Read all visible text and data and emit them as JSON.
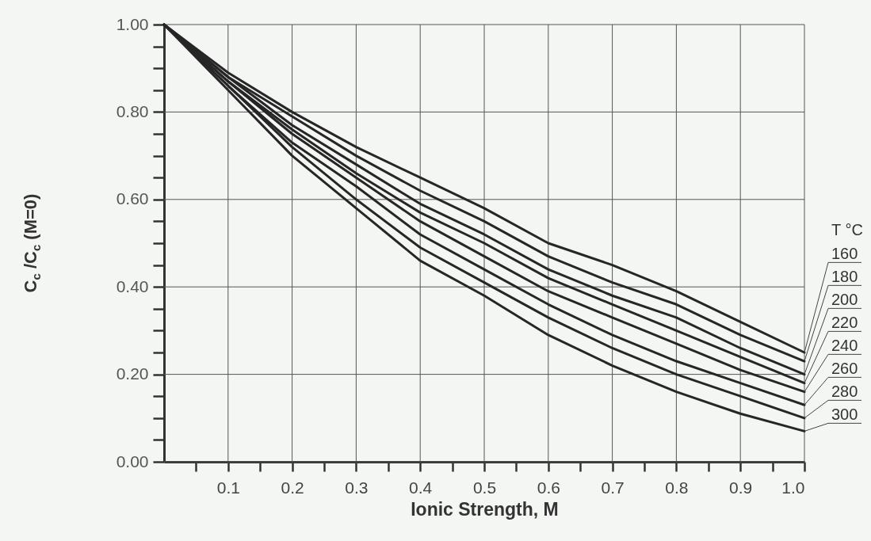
{
  "chart_data": {
    "type": "line",
    "xlabel": "Ionic Strength, M",
    "ylabel": "C$_{c}$ /C$_{c}$  (M=0)",
    "legend_title": "T °C",
    "grid": true,
    "x": [
      0,
      0.1,
      0.2,
      0.3,
      0.4,
      0.5,
      0.6,
      0.7,
      0.8,
      0.9,
      1.0
    ],
    "xlim": [
      0,
      1.0
    ],
    "ylim": [
      0,
      1.0
    ],
    "xticks": [
      {
        "value": 0.05,
        "label": null
      },
      0.1,
      {
        "value": 0.15,
        "label": null
      },
      0.2,
      {
        "value": 0.25,
        "label": null
      },
      0.3,
      {
        "value": 0.35,
        "label": null
      },
      0.4,
      {
        "value": 0.45,
        "label": null
      },
      0.5,
      {
        "value": 0.55,
        "label": null
      },
      0.6,
      {
        "value": 0.65,
        "label": null
      },
      0.7,
      {
        "value": 0.75,
        "label": null
      },
      0.8,
      {
        "value": 0.85,
        "label": null
      },
      0.9,
      {
        "value": 0.95,
        "label": null
      },
      {
        "value": 1.0,
        "label": "1.0"
      }
    ],
    "yticks": [
      {
        "value": 0,
        "label": "0.00"
      },
      {
        "value": 0.05,
        "label": null
      },
      {
        "value": 0.1,
        "label": null
      },
      {
        "value": 0.15,
        "label": null
      },
      {
        "value": 0.2,
        "label": "0.20"
      },
      {
        "value": 0.25,
        "label": null
      },
      {
        "value": 0.3,
        "label": null
      },
      {
        "value": 0.35,
        "label": null
      },
      {
        "value": 0.4,
        "label": "0.40"
      },
      {
        "value": 0.45,
        "label": null
      },
      {
        "value": 0.5,
        "label": null
      },
      {
        "value": 0.55,
        "label": null
      },
      {
        "value": 0.6,
        "label": "0.60"
      },
      {
        "value": 0.65,
        "label": null
      },
      {
        "value": 0.7,
        "label": null
      },
      {
        "value": 0.75,
        "label": null
      },
      {
        "value": 0.8,
        "label": "0.80"
      },
      {
        "value": 0.85,
        "label": null
      },
      {
        "value": 0.9,
        "label": null
      },
      {
        "value": 0.95,
        "label": null
      },
      {
        "value": 1.0,
        "label": "1.00"
      }
    ],
    "series": [
      {
        "name": "160",
        "color": "#262626",
        "values": [
          1,
          0.89,
          0.8,
          0.72,
          0.65,
          0.58,
          0.5,
          0.45,
          0.39,
          0.32,
          0.25
        ]
      },
      {
        "name": "180",
        "color": "#262626",
        "values": [
          1,
          0.88,
          0.79,
          0.7,
          0.62,
          0.55,
          0.47,
          0.41,
          0.36,
          0.29,
          0.23
        ]
      },
      {
        "name": "200",
        "color": "#262626",
        "values": [
          1,
          0.88,
          0.77,
          0.68,
          0.59,
          0.52,
          0.44,
          0.38,
          0.33,
          0.26,
          0.2
        ]
      },
      {
        "name": "220",
        "color": "#262626",
        "values": [
          1,
          0.87,
          0.76,
          0.66,
          0.57,
          0.5,
          0.42,
          0.36,
          0.3,
          0.24,
          0.18
        ]
      },
      {
        "name": "240",
        "color": "#262626",
        "values": [
          1,
          0.87,
          0.75,
          0.65,
          0.55,
          0.47,
          0.39,
          0.33,
          0.27,
          0.21,
          0.16
        ]
      },
      {
        "name": "260",
        "color": "#262626",
        "values": [
          1,
          0.86,
          0.73,
          0.63,
          0.52,
          0.44,
          0.36,
          0.29,
          0.23,
          0.18,
          0.13
        ]
      },
      {
        "name": "280",
        "color": "#262626",
        "values": [
          1,
          0.86,
          0.72,
          0.6,
          0.49,
          0.41,
          0.33,
          0.26,
          0.2,
          0.15,
          0.1
        ]
      },
      {
        "name": "300",
        "color": "#262626",
        "values": [
          1,
          0.85,
          0.7,
          0.58,
          0.46,
          0.38,
          0.29,
          0.22,
          0.16,
          0.11,
          0.07
        ]
      }
    ]
  }
}
